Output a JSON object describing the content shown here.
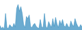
{
  "chart_data": {
    "type": "area",
    "values": [
      0.15,
      0.05,
      0.1,
      0.02,
      0.55,
      0.08,
      0.05,
      0.18,
      0.12,
      0.08,
      0.22,
      0.1,
      0.72,
      0.85,
      0.62,
      0.78,
      0.55,
      0.18,
      0.08,
      0.45,
      0.38,
      0.5,
      0.12,
      0.08,
      0.18,
      0.22,
      0.12,
      0.08,
      0.05,
      0.35,
      0.1,
      0.08,
      0.55,
      0.12,
      0.05,
      0.28,
      0.18,
      0.08,
      0.38,
      0.12,
      0.42,
      0.2,
      0.08,
      0.32,
      0.18,
      0.35,
      0.15,
      0.1,
      0.22,
      0.12,
      0.08,
      0.3,
      0.18,
      0.12,
      0.38,
      0.22,
      0.12,
      0.08,
      0.18,
      0.1
    ],
    "color": "#3a8fc0",
    "ylim": [
      0,
      1.0
    ],
    "grid": false,
    "tick_labels": false
  }
}
